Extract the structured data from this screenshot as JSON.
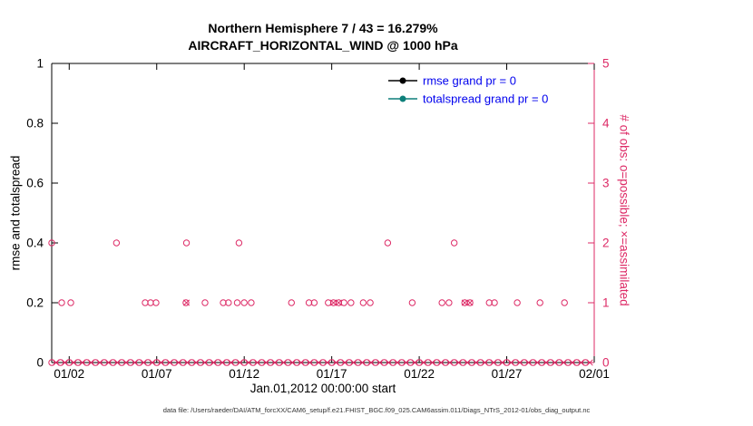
{
  "title": {
    "line1": "Northern Hemisphere 7 / 43 = 16.279%",
    "line2": "AIRCRAFT_HORIZONTAL_WIND @ 1000 hPa"
  },
  "legend": {
    "text_color": "#0000ee",
    "items": [
      {
        "label": "rmse grand pr = 0",
        "color": "#000000",
        "marker": "line-dot"
      },
      {
        "label": "totalspread grand pr = 0",
        "color": "#0d7f7a",
        "marker": "line-dot"
      }
    ]
  },
  "caption": "data file: /Users/raeder/DAI/ATM_forcXX/CAM6_setup/f.e21.FHIST_BGC.f09_025.CAM6assim.011/Diags_NTrS_2012-01/obs_diag_output.nc",
  "colors": {
    "obs_pink": "#dd2a66",
    "axis_black": "#000000",
    "totalspread_teal": "#0d7f7a"
  },
  "chart_data": {
    "type": "scatter",
    "title": "Northern Hemisphere 7 / 43 = 16.279% — AIRCRAFT_HORIZONTAL_WIND @ 1000 hPa",
    "xlabel": "Jan.01,2012 00:00:00 start",
    "ylabel_left": "rmse and totalspread",
    "ylabel_right": "# of obs: o=possible; ×=assimilated",
    "grid": false,
    "legend_position": "upper-right-inside",
    "x_ticks": [
      "01/02",
      "01/07",
      "01/12",
      "01/17",
      "01/22",
      "01/27",
      "02/01"
    ],
    "x_tick_days": [
      2,
      7,
      12,
      17,
      22,
      27,
      32
    ],
    "x_range_days": [
      1,
      32
    ],
    "ylim_left": [
      0,
      1
    ],
    "yticks_left": [
      "0",
      "0.2",
      "0.4",
      "0.6",
      "0.8",
      "1"
    ],
    "yticks_left_vals": [
      0,
      0.2,
      0.4,
      0.6,
      0.8,
      1
    ],
    "ylim_right": [
      0,
      5
    ],
    "yticks_right": [
      "0",
      "1",
      "2",
      "3",
      "4",
      "5"
    ],
    "yticks_right_vals": [
      0,
      1,
      2,
      3,
      4,
      5
    ],
    "series": [
      {
        "name": "rmse",
        "axis": "left",
        "marker": "line-dot",
        "color": "#000000",
        "points": []
      },
      {
        "name": "totalspread",
        "axis": "left",
        "marker": "line-dot",
        "color": "#0d7f7a",
        "points": []
      },
      {
        "name": "possible_obs",
        "axis": "right",
        "marker": "o",
        "color": "#dd2a66",
        "points": [
          [
            1,
            2
          ],
          [
            4.7,
            2
          ],
          [
            8.7,
            2
          ],
          [
            11.7,
            2
          ],
          [
            20.2,
            2
          ],
          [
            24,
            2
          ],
          [
            1.57,
            1
          ],
          [
            2.09,
            1
          ],
          [
            6.34,
            1
          ],
          [
            6.65,
            1
          ],
          [
            6.96,
            1
          ],
          [
            8.67,
            1
          ],
          [
            9.76,
            1
          ],
          [
            10.8,
            1
          ],
          [
            11.1,
            1
          ],
          [
            11.6,
            1
          ],
          [
            12,
            1
          ],
          [
            12.4,
            1
          ],
          [
            14.7,
            1
          ],
          [
            15.7,
            1
          ],
          [
            16,
            1
          ],
          [
            16.8,
            1
          ],
          [
            17.1,
            1
          ],
          [
            17.4,
            1
          ],
          [
            17.7,
            1
          ],
          [
            18.1,
            1
          ],
          [
            18.8,
            1
          ],
          [
            19.2,
            1
          ],
          [
            21.6,
            1
          ],
          [
            23.3,
            1
          ],
          [
            23.7,
            1
          ],
          [
            24.6,
            1
          ],
          [
            24.9,
            1
          ],
          [
            26,
            1
          ],
          [
            26.3,
            1
          ],
          [
            27.6,
            1
          ],
          [
            28.9,
            1
          ],
          [
            30.3,
            1
          ],
          [
            1,
            0
          ],
          [
            1.5,
            0
          ],
          [
            2,
            0
          ],
          [
            2.5,
            0
          ],
          [
            3,
            0
          ],
          [
            3.5,
            0
          ],
          [
            4,
            0
          ],
          [
            4.5,
            0
          ],
          [
            5,
            0
          ],
          [
            5.5,
            0
          ],
          [
            6,
            0
          ],
          [
            6.5,
            0
          ],
          [
            7,
            0
          ],
          [
            7.5,
            0
          ],
          [
            8,
            0
          ],
          [
            8.5,
            0
          ],
          [
            9,
            0
          ],
          [
            9.5,
            0
          ],
          [
            10,
            0
          ],
          [
            10.5,
            0
          ],
          [
            11,
            0
          ],
          [
            11.5,
            0
          ],
          [
            12,
            0
          ],
          [
            12.5,
            0
          ],
          [
            13,
            0
          ],
          [
            13.5,
            0
          ],
          [
            14,
            0
          ],
          [
            14.5,
            0
          ],
          [
            15,
            0
          ],
          [
            15.5,
            0
          ],
          [
            16,
            0
          ],
          [
            16.5,
            0
          ],
          [
            17,
            0
          ],
          [
            17.5,
            0
          ],
          [
            18,
            0
          ],
          [
            18.5,
            0
          ],
          [
            19,
            0
          ],
          [
            19.5,
            0
          ],
          [
            20,
            0
          ],
          [
            20.5,
            0
          ],
          [
            21,
            0
          ],
          [
            21.5,
            0
          ],
          [
            22,
            0
          ],
          [
            22.5,
            0
          ],
          [
            23,
            0
          ],
          [
            23.5,
            0
          ],
          [
            24,
            0
          ],
          [
            24.5,
            0
          ],
          [
            25,
            0
          ],
          [
            25.5,
            0
          ],
          [
            26,
            0
          ],
          [
            26.5,
            0
          ],
          [
            27,
            0
          ],
          [
            27.5,
            0
          ],
          [
            28,
            0
          ],
          [
            28.5,
            0
          ],
          [
            29,
            0
          ],
          [
            29.5,
            0
          ],
          [
            30,
            0
          ],
          [
            30.5,
            0
          ],
          [
            31,
            0
          ],
          [
            31.5,
            0
          ]
        ]
      },
      {
        "name": "assimilated_obs",
        "axis": "right",
        "marker": "x",
        "color": "#dd2a66",
        "points": [
          [
            8.7,
            1
          ],
          [
            17.1,
            1
          ],
          [
            17.4,
            1
          ],
          [
            24.6,
            1
          ],
          [
            24.9,
            1
          ],
          [
            1.25,
            0
          ],
          [
            1.75,
            0
          ],
          [
            2.25,
            0
          ],
          [
            2.75,
            0
          ],
          [
            3.25,
            0
          ],
          [
            3.75,
            0
          ],
          [
            4.25,
            0
          ],
          [
            4.75,
            0
          ],
          [
            5.25,
            0
          ],
          [
            5.75,
            0
          ],
          [
            6.25,
            0
          ],
          [
            6.75,
            0
          ],
          [
            7.25,
            0
          ],
          [
            7.75,
            0
          ],
          [
            8.25,
            0
          ],
          [
            8.75,
            0
          ],
          [
            9.25,
            0
          ],
          [
            9.75,
            0
          ],
          [
            10.25,
            0
          ],
          [
            10.75,
            0
          ],
          [
            11.25,
            0
          ],
          [
            11.75,
            0
          ],
          [
            12.25,
            0
          ],
          [
            12.75,
            0
          ],
          [
            13.25,
            0
          ],
          [
            13.75,
            0
          ],
          [
            14.25,
            0
          ],
          [
            14.75,
            0
          ],
          [
            15.25,
            0
          ],
          [
            15.75,
            0
          ],
          [
            16.25,
            0
          ],
          [
            16.75,
            0
          ],
          [
            17.25,
            0
          ],
          [
            17.75,
            0
          ],
          [
            18.25,
            0
          ],
          [
            18.75,
            0
          ],
          [
            19.25,
            0
          ],
          [
            19.75,
            0
          ],
          [
            20.25,
            0
          ],
          [
            20.75,
            0
          ],
          [
            21.25,
            0
          ],
          [
            21.75,
            0
          ],
          [
            22.25,
            0
          ],
          [
            22.75,
            0
          ],
          [
            23.25,
            0
          ],
          [
            23.75,
            0
          ],
          [
            24.25,
            0
          ],
          [
            24.75,
            0
          ],
          [
            25.25,
            0
          ],
          [
            25.75,
            0
          ],
          [
            26.25,
            0
          ],
          [
            26.75,
            0
          ],
          [
            27.25,
            0
          ],
          [
            27.75,
            0
          ],
          [
            28.25,
            0
          ],
          [
            28.75,
            0
          ],
          [
            29.25,
            0
          ],
          [
            29.75,
            0
          ],
          [
            30.25,
            0
          ],
          [
            30.75,
            0
          ],
          [
            31.25,
            0
          ],
          [
            31.75,
            0
          ]
        ]
      }
    ]
  }
}
